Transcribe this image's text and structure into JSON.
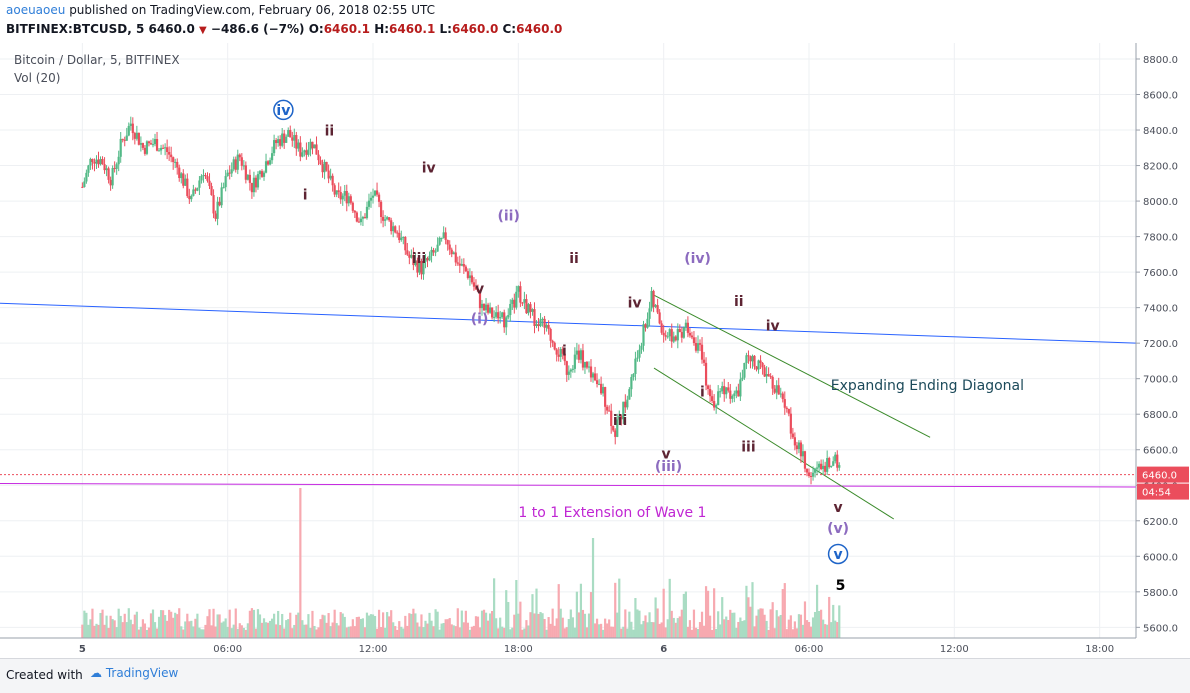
{
  "header": {
    "user": "aoeuaoeu",
    "published": " published on TradingView.com, February 06, 2018 02:55 UTC",
    "symbol": "BITFINEX:BTCUSD, 5",
    "last": "6460.0",
    "down_icon": "triangle-down-icon",
    "change": "−486.6 (−7%)",
    "o_label": "O:",
    "o_val": "6460.1",
    "h_label": "H:",
    "h_val": "6460.1",
    "l_label": "L:",
    "l_val": "6460.0",
    "c_label": "C:",
    "c_val": "6460.0"
  },
  "footer": {
    "created_label": "Created with",
    "brand": "TradingView",
    "brand_icon": "tradingview-cloud-icon"
  },
  "colors": {
    "up": "#53b987",
    "down": "#eb4d5c",
    "vol_up": "#a9dcc3",
    "vol_down": "#f7a9b0",
    "blue_line": "#2962ff",
    "magenta_line": "#c62ae0",
    "channel": "#3a8a2a",
    "wave_dark": "#5d2433",
    "wave_purple": "#8c6bbf",
    "wave_blue": "#1e64c8",
    "annot_teal": "#1c4a5a",
    "annot_magenta": "#c026d3"
  },
  "chart_data": {
    "type": "candlestick",
    "title": "Bitcoin / Dollar, 5, BITFINEX",
    "volume_label": "Vol (20)",
    "x_ticks": [
      "5",
      "06:00",
      "12:00",
      "18:00",
      "6",
      "06:00",
      "12:00",
      "18:00"
    ],
    "y_ticks": [
      5600,
      5800,
      6000,
      6200,
      6400,
      6600,
      6800,
      7000,
      7200,
      7400,
      7600,
      7800,
      8000,
      8200,
      8400,
      8600,
      8800
    ],
    "ylim": [
      5540,
      8890
    ],
    "xlim_hours": [
      -3.4,
      43.5
    ],
    "grid": true,
    "price_axis_side": "right",
    "last_price_label": "6460.0",
    "countdown_label": "04:54",
    "price_path": [
      [
        0.0,
        8080
      ],
      [
        0.4,
        8250
      ],
      [
        0.8,
        8230
      ],
      [
        1.2,
        8120
      ],
      [
        1.6,
        8320
      ],
      [
        2.0,
        8440
      ],
      [
        2.5,
        8300
      ],
      [
        3.0,
        8330
      ],
      [
        3.5,
        8280
      ],
      [
        4.0,
        8170
      ],
      [
        4.5,
        8000
      ],
      [
        5.0,
        8180
      ],
      [
        5.5,
        7920
      ],
      [
        6.0,
        8150
      ],
      [
        6.5,
        8250
      ],
      [
        7.0,
        8080
      ],
      [
        7.5,
        8200
      ],
      [
        8.0,
        8330
      ],
      [
        8.5,
        8380
      ],
      [
        9.0,
        8280
      ],
      [
        9.5,
        8330
      ],
      [
        10.0,
        8180
      ],
      [
        10.5,
        8020
      ],
      [
        11.0,
        8030
      ],
      [
        11.5,
        7870
      ],
      [
        12.0,
        8040
      ],
      [
        12.5,
        7900
      ],
      [
        13.0,
        7830
      ],
      [
        13.5,
        7680
      ],
      [
        14.0,
        7620
      ],
      [
        14.5,
        7700
      ],
      [
        15.0,
        7800
      ],
      [
        15.5,
        7650
      ],
      [
        16.0,
        7580
      ],
      [
        16.5,
        7400
      ],
      [
        17.0,
        7350
      ],
      [
        17.5,
        7330
      ],
      [
        18.0,
        7480
      ],
      [
        18.5,
        7360
      ],
      [
        19.0,
        7300
      ],
      [
        19.5,
        7200
      ],
      [
        20.0,
        7050
      ],
      [
        20.5,
        7150
      ],
      [
        21.0,
        7000
      ],
      [
        21.5,
        6920
      ],
      [
        22.0,
        6700
      ],
      [
        22.5,
        6900
      ],
      [
        23.0,
        7180
      ],
      [
        23.5,
        7450
      ],
      [
        24.0,
        7260
      ],
      [
        24.5,
        7230
      ],
      [
        25.0,
        7300
      ],
      [
        25.5,
        7150
      ],
      [
        26.0,
        6850
      ],
      [
        26.5,
        6950
      ],
      [
        27.0,
        6900
      ],
      [
        27.5,
        7130
      ],
      [
        28.0,
        7050
      ],
      [
        28.5,
        6980
      ],
      [
        29.0,
        6850
      ],
      [
        29.5,
        6620
      ],
      [
        30.0,
        6480
      ],
      [
        30.5,
        6500
      ],
      [
        31.0,
        6560
      ],
      [
        31.3,
        6460
      ]
    ],
    "volume_scale": 1.0,
    "lines": [
      {
        "name": "trend",
        "from": [
          -3.4,
          7425
        ],
        "to": [
          43.5,
          7200
        ],
        "color": "blue_line"
      },
      {
        "name": "extension",
        "from": [
          -3.4,
          6410
        ],
        "to": [
          43.5,
          6390
        ],
        "color": "magenta_line"
      },
      {
        "name": "channel-upper",
        "from": [
          23.6,
          7470
        ],
        "to": [
          35.0,
          6670
        ],
        "color": "channel"
      },
      {
        "name": "channel-lower",
        "from": [
          23.6,
          7060
        ],
        "to": [
          33.5,
          6210
        ],
        "color": "channel"
      }
    ],
    "wave_labels": [
      {
        "text": "iv",
        "x": 8.3,
        "y": 8485,
        "color": "wave_blue",
        "circled": true
      },
      {
        "text": "ii",
        "x": 10.2,
        "y": 8370,
        "color": "wave_dark"
      },
      {
        "text": "i",
        "x": 9.2,
        "y": 8010,
        "color": "wave_dark"
      },
      {
        "text": "iv",
        "x": 14.3,
        "y": 8160,
        "color": "wave_dark"
      },
      {
        "text": "iii",
        "x": 13.9,
        "y": 7650,
        "color": "wave_dark"
      },
      {
        "text": "(ii)",
        "x": 17.6,
        "y": 7890,
        "color": "wave_purple"
      },
      {
        "text": "v",
        "x": 16.4,
        "y": 7480,
        "color": "wave_dark"
      },
      {
        "text": "(i)",
        "x": 16.4,
        "y": 7310,
        "color": "wave_purple"
      },
      {
        "text": "ii",
        "x": 20.3,
        "y": 7650,
        "color": "wave_dark"
      },
      {
        "text": "i",
        "x": 19.9,
        "y": 7130,
        "color": "wave_dark"
      },
      {
        "text": "iv",
        "x": 22.8,
        "y": 7400,
        "color": "wave_dark"
      },
      {
        "text": "iii",
        "x": 22.2,
        "y": 6740,
        "color": "wave_dark"
      },
      {
        "text": "(iv)",
        "x": 25.4,
        "y": 7650,
        "color": "wave_purple"
      },
      {
        "text": "v",
        "x": 24.1,
        "y": 6550,
        "color": "wave_dark"
      },
      {
        "text": "(iii)",
        "x": 24.2,
        "y": 6480,
        "color": "wave_purple"
      },
      {
        "text": "ii",
        "x": 27.1,
        "y": 7410,
        "color": "wave_dark"
      },
      {
        "text": "i",
        "x": 25.6,
        "y": 6900,
        "color": "wave_dark"
      },
      {
        "text": "iv",
        "x": 28.5,
        "y": 7270,
        "color": "wave_dark"
      },
      {
        "text": "iii",
        "x": 27.5,
        "y": 6590,
        "color": "wave_dark"
      },
      {
        "text": "v",
        "x": 31.2,
        "y": 6250,
        "color": "wave_dark"
      },
      {
        "text": "(v)",
        "x": 31.2,
        "y": 6130,
        "color": "wave_purple"
      },
      {
        "text": "v",
        "x": 31.2,
        "y": 5985,
        "color": "wave_blue",
        "circled": true
      },
      {
        "text": "5",
        "x": 31.3,
        "y": 5810,
        "color": "black",
        "large": true
      }
    ],
    "annotations": [
      {
        "text": "Expanding Ending Diagonal",
        "x": 30.9,
        "y": 6935,
        "color": "annot_teal"
      },
      {
        "text": "1 to 1 Extension of Wave 1",
        "x": 18.0,
        "y": 6220,
        "color": "annot_magenta"
      }
    ]
  }
}
